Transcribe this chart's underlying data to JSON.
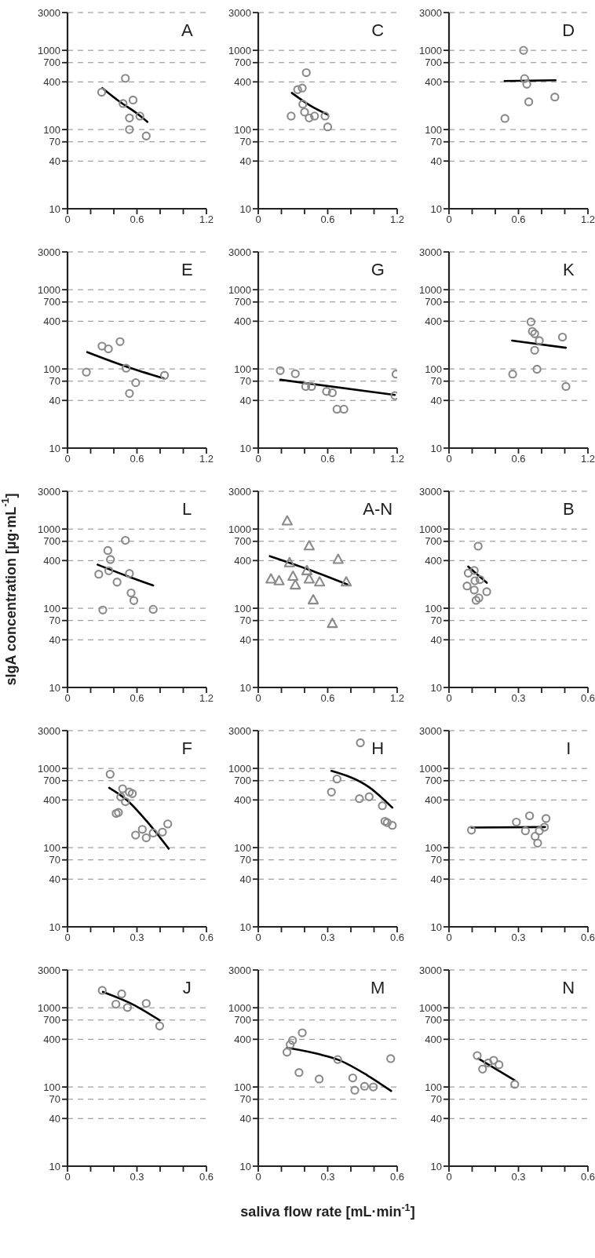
{
  "chart_data": [
    {
      "type": "scatter",
      "title": "A",
      "xlim": [
        0,
        1.2
      ],
      "xticks": [
        0,
        {
          "value": 0.2,
          "label": null
        },
        {
          "value": 0.4,
          "label": null
        },
        0.6,
        {
          "value": 0.8,
          "label": null
        },
        {
          "value": 1.0,
          "label": null
        },
        1.2
      ],
      "ylim": [
        10,
        3000
      ],
      "yticks": [
        10,
        40,
        70,
        100,
        400,
        700,
        1000,
        3000
      ],
      "log": "y",
      "grid": "y",
      "series": [
        {
          "type": "scatter",
          "marker": "circle",
          "color": "#8a8a8a",
          "x": [
            0.5,
            0.295,
            0.566,
            0.48,
            0.625,
            0.535,
            0.535,
            0.68
          ],
          "values": [
            443,
            296,
            236,
            213,
            148,
            140,
            100,
            83
          ]
        },
        {
          "type": "line",
          "color": "#000000",
          "x": [
            0.3,
            0.45,
            0.6,
            0.69
          ],
          "values": [
            334,
            225,
            160,
            125
          ]
        }
      ]
    },
    {
      "type": "scatter",
      "title": "C",
      "xlim": [
        0,
        1.2
      ],
      "xticks": [
        0,
        {
          "value": 0.2,
          "label": null
        },
        {
          "value": 0.4,
          "label": null
        },
        0.6,
        {
          "value": 0.8,
          "label": null
        },
        {
          "value": 1.0,
          "label": null
        },
        1.2
      ],
      "ylim": [
        10,
        3000
      ],
      "yticks": [
        10,
        40,
        70,
        100,
        400,
        700,
        1000,
        3000
      ],
      "log": "y",
      "grid": "y",
      "series": [
        {
          "type": "scatter",
          "marker": "circle",
          "color": "#8a8a8a",
          "x": [
            0.415,
            0.38,
            0.34,
            0.385,
            0.4,
            0.577,
            0.486,
            0.44,
            0.284,
            0.6
          ],
          "values": [
            523,
            334,
            319,
            209,
            166,
            148,
            148,
            140,
            148,
            108
          ]
        },
        {
          "type": "line",
          "color": "#000000",
          "x": [
            0.29,
            0.45,
            0.6
          ],
          "values": [
            290,
            200,
            154
          ]
        }
      ]
    },
    {
      "type": "scatter",
      "title": "D",
      "xlim": [
        0,
        1.2
      ],
      "xticks": [
        0,
        {
          "value": 0.2,
          "label": null
        },
        {
          "value": 0.4,
          "label": null
        },
        0.6,
        {
          "value": 0.8,
          "label": null
        },
        {
          "value": 1.0,
          "label": null
        },
        1.2
      ],
      "ylim": [
        10,
        3000
      ],
      "yticks": [
        10,
        40,
        70,
        100,
        400,
        700,
        1000,
        3000
      ],
      "log": "y",
      "grid": "y",
      "series": [
        {
          "type": "scatter",
          "marker": "circle",
          "color": "#8a8a8a",
          "x": [
            0.644,
            0.653,
            0.672,
            0.914,
            0.689,
            0.483
          ],
          "values": [
            1000,
            440,
            374,
            257,
            224,
            138
          ]
        },
        {
          "type": "line",
          "color": "#000000",
          "x": [
            0.48,
            0.92
          ],
          "values": [
            410,
            420
          ]
        }
      ]
    },
    {
      "type": "scatter",
      "title": "E",
      "xlim": [
        0,
        1.2
      ],
      "xticks": [
        0,
        {
          "value": 0.2,
          "label": null
        },
        {
          "value": 0.4,
          "label": null
        },
        0.6,
        {
          "value": 0.8,
          "label": null
        },
        {
          "value": 1.0,
          "label": null
        },
        1.2
      ],
      "ylim": [
        10,
        3000
      ],
      "yticks": [
        10,
        40,
        70,
        100,
        400,
        700,
        1000,
        3000
      ],
      "log": "y",
      "grid": "y",
      "series": [
        {
          "type": "scatter",
          "marker": "circle",
          "color": "#8a8a8a",
          "x": [
            0.838,
            0.589,
            0.535,
            0.506,
            0.454,
            0.353,
            0.298,
            0.163
          ],
          "values": [
            83,
            67,
            49,
            102,
            221,
            179,
            194,
            91
          ]
        },
        {
          "type": "line",
          "color": "#000000",
          "x": [
            0.17,
            0.5,
            0.83
          ],
          "values": [
            163,
            108,
            76
          ]
        }
      ]
    },
    {
      "type": "scatter",
      "title": "G",
      "xlim": [
        0,
        1.2
      ],
      "xticks": [
        0,
        {
          "value": 0.2,
          "label": null
        },
        {
          "value": 0.4,
          "label": null
        },
        0.6,
        {
          "value": 0.8,
          "label": null
        },
        {
          "value": 1.0,
          "label": null
        },
        1.2
      ],
      "ylim": [
        10,
        3000
      ],
      "yticks": [
        10,
        40,
        70,
        100,
        400,
        700,
        1000,
        3000
      ],
      "log": "y",
      "grid": "y",
      "series": [
        {
          "type": "scatter",
          "marker": "circle",
          "color": "#8a8a8a",
          "x": [
            0.19,
            0.32,
            0.41,
            0.46,
            0.59,
            0.64,
            0.68,
            0.74,
            1.19,
            1.18
          ],
          "values": [
            95,
            87,
            60,
            60,
            52,
            50,
            31,
            31,
            86,
            46
          ]
        },
        {
          "type": "line",
          "color": "#000000",
          "x": [
            0.19,
            1.18
          ],
          "values": [
            73,
            47
          ]
        }
      ]
    },
    {
      "type": "scatter",
      "title": "K",
      "xlim": [
        0,
        1.2
      ],
      "xticks": [
        0,
        {
          "value": 0.2,
          "label": null
        },
        {
          "value": 0.4,
          "label": null
        },
        0.6,
        {
          "value": 0.8,
          "label": null
        },
        {
          "value": 1.0,
          "label": null
        },
        1.2
      ],
      "ylim": [
        10,
        3000
      ],
      "yticks": [
        10,
        40,
        70,
        100,
        400,
        700,
        1000,
        3000
      ],
      "log": "y",
      "grid": "y",
      "series": [
        {
          "type": "scatter",
          "marker": "circle",
          "color": "#8a8a8a",
          "x": [
            0.98,
            0.708,
            0.72,
            0.74,
            0.78,
            0.74,
            0.76,
            0.55,
            1.01
          ],
          "values": [
            252,
            392,
            297,
            278,
            228,
            172,
            99,
            86,
            60
          ]
        },
        {
          "type": "line",
          "color": "#000000",
          "x": [
            0.545,
            1.01
          ],
          "values": [
            228,
            185
          ]
        }
      ]
    },
    {
      "type": "scatter",
      "title": "L",
      "ylabel": "sIgA concentration [µg·mL$^{-1}$]",
      "xlim": [
        0,
        1.2
      ],
      "xticks": [
        0,
        {
          "value": 0.2,
          "label": null
        },
        {
          "value": 0.4,
          "label": null
        },
        0.6,
        {
          "value": 0.8,
          "label": null
        },
        {
          "value": 1.0,
          "label": null
        },
        1.2
      ],
      "ylim": [
        10,
        3000
      ],
      "yticks": [
        10,
        40,
        70,
        100,
        400,
        700,
        1000,
        3000
      ],
      "log": "y",
      "grid": "y",
      "series": [
        {
          "type": "scatter",
          "marker": "circle",
          "color": "#8a8a8a",
          "x": [
            0.5,
            0.348,
            0.371,
            0.357,
            0.27,
            0.535,
            0.428,
            0.549,
            0.573,
            0.74,
            0.305
          ],
          "values": [
            719,
            536,
            412,
            297,
            269,
            275,
            214,
            156,
            125,
            97,
            95
          ]
        },
        {
          "type": "line",
          "color": "#000000",
          "x": [
            0.26,
            0.5,
            0.74
          ],
          "values": [
            355,
            260,
            194
          ]
        }
      ]
    },
    {
      "type": "scatter",
      "title": "A-N",
      "xlim": [
        0,
        1.2
      ],
      "xticks": [
        0,
        {
          "value": 0.2,
          "label": null
        },
        {
          "value": 0.4,
          "label": null
        },
        0.6,
        {
          "value": 0.8,
          "label": null
        },
        {
          "value": 1.0,
          "label": null
        },
        1.2
      ],
      "ylim": [
        10,
        3000
      ],
      "yticks": [
        10,
        40,
        70,
        100,
        400,
        700,
        1000,
        3000
      ],
      "log": "y",
      "grid": "y",
      "series": [
        {
          "type": "scatter",
          "marker": "triangle",
          "color": "#8a8a8a",
          "x": [
            0.25,
            0.44,
            0.69,
            0.27,
            0.42,
            0.3,
            0.44,
            0.18,
            0.11,
            0.32,
            0.53,
            0.475,
            0.76,
            0.64
          ],
          "values": [
            1259,
            611,
            412,
            374,
            297,
            252,
            233,
            221,
            233,
            196,
            214,
            127,
            214,
            64
          ]
        },
        {
          "type": "line",
          "color": "#000000",
          "x": [
            0.1,
            0.44,
            0.77
          ],
          "values": [
            455,
            307,
            200
          ]
        }
      ]
    },
    {
      "type": "scatter",
      "title": "B",
      "xlim": [
        0,
        0.6
      ],
      "xticks": [
        0,
        {
          "value": 0.1,
          "label": null
        },
        {
          "value": 0.2,
          "label": null
        },
        0.3,
        {
          "value": 0.4,
          "label": null
        },
        {
          "value": 0.5,
          "label": null
        },
        0.6
      ],
      "ylim": [
        10,
        3000
      ],
      "yticks": [
        10,
        40,
        70,
        100,
        400,
        700,
        1000,
        3000
      ],
      "log": "y",
      "grid": "y",
      "series": [
        {
          "type": "scatter",
          "marker": "circle",
          "color": "#8a8a8a",
          "x": [
            0.126,
            0.109,
            0.083,
            0.134,
            0.112,
            0.078,
            0.109,
            0.163,
            0.129,
            0.117
          ],
          "values": [
            608,
            300,
            278,
            230,
            222,
            191,
            170,
            162,
            135,
            126
          ]
        },
        {
          "type": "line",
          "color": "#000000",
          "x": [
            0.083,
            0.163
          ],
          "values": [
            336,
            210
          ]
        }
      ]
    },
    {
      "type": "scatter",
      "title": "F",
      "xlim": [
        0,
        0.6
      ],
      "xticks": [
        0,
        {
          "value": 0.1,
          "label": null
        },
        {
          "value": 0.2,
          "label": null
        },
        0.3,
        {
          "value": 0.4,
          "label": null
        },
        {
          "value": 0.5,
          "label": null
        },
        0.6
      ],
      "ylim": [
        10,
        3000
      ],
      "yticks": [
        10,
        40,
        70,
        100,
        400,
        700,
        1000,
        3000
      ],
      "log": "y",
      "grid": "y",
      "series": [
        {
          "type": "scatter",
          "marker": "circle",
          "color": "#8a8a8a",
          "x": [
            0.184,
            0.238,
            0.267,
            0.28,
            0.23,
            0.25,
            0.21,
            0.22,
            0.323,
            0.294,
            0.433,
            0.41,
            0.37,
            0.34
          ],
          "values": [
            845,
            553,
            504,
            481,
            437,
            380,
            270,
            278,
            170,
            144,
            199,
            157,
            153,
            133
          ]
        },
        {
          "type": "line",
          "color": "#000000",
          "x": [
            0.18,
            0.26,
            0.348,
            0.437
          ],
          "values": [
            569,
            390,
            206,
            97
          ]
        }
      ]
    },
    {
      "type": "scatter",
      "title": "H",
      "xlim": [
        0,
        0.6
      ],
      "xticks": [
        0,
        {
          "value": 0.1,
          "label": null
        },
        {
          "value": 0.2,
          "label": null
        },
        0.3,
        {
          "value": 0.4,
          "label": null
        },
        {
          "value": 0.5,
          "label": null
        },
        0.6
      ],
      "ylim": [
        10,
        3000
      ],
      "yticks": [
        10,
        40,
        70,
        100,
        400,
        700,
        1000,
        3000
      ],
      "log": "y",
      "grid": "y",
      "series": [
        {
          "type": "scatter",
          "marker": "circle",
          "color": "#8a8a8a",
          "x": [
            0.441,
            0.34,
            0.316,
            0.479,
            0.437,
            0.536,
            0.547,
            0.557,
            0.579
          ],
          "values": [
            2106,
            735,
            502,
            439,
            415,
            338,
            215,
            207,
            191
          ]
        },
        {
          "type": "line",
          "color": "#000000",
          "x": [
            0.316,
            0.479,
            0.579
          ],
          "values": [
            931,
            579,
            320
          ]
        }
      ]
    },
    {
      "type": "scatter",
      "title": "I",
      "xlim": [
        0,
        0.6
      ],
      "xticks": [
        0,
        {
          "value": 0.1,
          "label": null
        },
        {
          "value": 0.2,
          "label": null
        },
        0.3,
        {
          "value": 0.4,
          "label": null
        },
        {
          "value": 0.5,
          "label": null
        },
        0.6
      ],
      "ylim": [
        10,
        3000
      ],
      "yticks": [
        10,
        40,
        70,
        100,
        400,
        700,
        1000,
        3000
      ],
      "log": "y",
      "grid": "y",
      "series": [
        {
          "type": "scatter",
          "marker": "circle",
          "color": "#8a8a8a",
          "x": [
            0.419,
            0.348,
            0.291,
            0.412,
            0.39,
            0.33,
            0.372,
            0.383,
            0.097
          ],
          "values": [
            233,
            252,
            210,
            181,
            163,
            163,
            139,
            114,
            166
          ]
        },
        {
          "type": "line",
          "color": "#000000",
          "x": [
            0.097,
            0.415
          ],
          "values": [
            179,
            182
          ]
        }
      ]
    },
    {
      "type": "scatter",
      "title": "J",
      "xlim": [
        0,
        0.6
      ],
      "xticks": [
        0,
        {
          "value": 0.1,
          "label": null
        },
        {
          "value": 0.2,
          "label": null
        },
        0.3,
        {
          "value": 0.4,
          "label": null
        },
        {
          "value": 0.5,
          "label": null
        },
        0.6
      ],
      "ylim": [
        10,
        3000
      ],
      "yticks": [
        10,
        40,
        70,
        100,
        400,
        700,
        1000,
        3000
      ],
      "log": "y",
      "grid": "y",
      "series": [
        {
          "type": "scatter",
          "marker": "circle",
          "color": "#8a8a8a",
          "x": [
            0.15,
            0.234,
            0.209,
            0.259,
            0.34,
            0.398
          ],
          "values": [
            1660,
            1496,
            1109,
            1008,
            1135,
            589
          ]
        },
        {
          "type": "line",
          "color": "#000000",
          "x": [
            0.153,
            0.28,
            0.398
          ],
          "values": [
            1585,
            1109,
            695
          ]
        }
      ]
    },
    {
      "type": "scatter",
      "title": "M",
      "xlabel": "saliva flow rate [mL·min$^{-1}$]",
      "xlim": [
        0,
        0.6
      ],
      "xticks": [
        0,
        {
          "value": 0.1,
          "label": null
        },
        {
          "value": 0.2,
          "label": null
        },
        0.3,
        {
          "value": 0.4,
          "label": null
        },
        {
          "value": 0.5,
          "label": null
        },
        0.6
      ],
      "ylim": [
        10,
        3000
      ],
      "yticks": [
        10,
        40,
        70,
        100,
        400,
        700,
        1000,
        3000
      ],
      "log": "y",
      "grid": "y",
      "series": [
        {
          "type": "scatter",
          "marker": "circle",
          "color": "#8a8a8a",
          "x": [
            0.19,
            0.148,
            0.138,
            0.124,
            0.176,
            0.263,
            0.343,
            0.408,
            0.417,
            0.459,
            0.497,
            0.572
          ],
          "values": [
            483,
            388,
            343,
            275,
            152,
            126,
            222,
            130,
            91,
            102,
            100,
            228
          ]
        },
        {
          "type": "line",
          "color": "#000000",
          "x": [
            0.124,
            0.263,
            0.343,
            0.47,
            0.574
          ],
          "values": [
            313,
            259,
            222,
            141,
            89
          ]
        }
      ]
    },
    {
      "type": "scatter",
      "title": "N",
      "xlim": [
        0,
        0.6
      ],
      "xticks": [
        0,
        {
          "value": 0.1,
          "label": null
        },
        {
          "value": 0.2,
          "label": null
        },
        0.3,
        {
          "value": 0.4,
          "label": null
        },
        {
          "value": 0.5,
          "label": null
        },
        0.6
      ],
      "ylim": [
        10,
        3000
      ],
      "yticks": [
        10,
        40,
        70,
        100,
        400,
        700,
        1000,
        3000
      ],
      "log": "y",
      "grid": "y",
      "series": [
        {
          "type": "scatter",
          "marker": "circle",
          "color": "#8a8a8a",
          "x": [
            0.122,
            0.193,
            0.216,
            0.169,
            0.145,
            0.284
          ],
          "values": [
            249,
            217,
            191,
            201,
            168,
            108
          ]
        },
        {
          "type": "line",
          "color": "#000000",
          "x": [
            0.127,
            0.284
          ],
          "values": [
            228,
            121
          ]
        }
      ]
    }
  ]
}
